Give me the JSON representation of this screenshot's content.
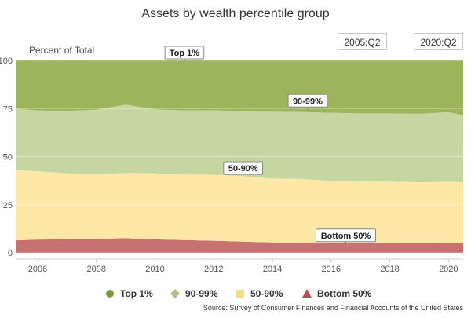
{
  "chart_data": {
    "type": "area",
    "stacked": true,
    "title": "Assets by wealth percentile group",
    "ylabel": "Percent of Total",
    "ylim": [
      0,
      100
    ],
    "yticks": [
      0,
      25,
      50,
      75,
      100
    ],
    "xlim": [
      2005.25,
      2020.5
    ],
    "xticks": [
      2006,
      2008,
      2010,
      2012,
      2014,
      2016,
      2018,
      2020
    ],
    "x": [
      2005.25,
      2006,
      2007,
      2008,
      2009,
      2010,
      2011,
      2012,
      2013,
      2014,
      2015,
      2016,
      2017,
      2018,
      2019,
      2020,
      2020.5
    ],
    "series": [
      {
        "name": "Bottom 50%",
        "color": "#c97070",
        "marker": "triangle",
        "values": [
          6.5,
          6.9,
          7.0,
          7.3,
          7.6,
          7.0,
          6.6,
          6.3,
          5.8,
          5.4,
          5.2,
          5.0,
          5.0,
          5.0,
          4.9,
          5.0,
          5.1
        ]
      },
      {
        "name": "50-90%",
        "color": "#fde7a6",
        "marker": "square",
        "values": [
          36.5,
          35.5,
          34.4,
          33.4,
          34.0,
          34.3,
          34.2,
          34.3,
          34.1,
          33.3,
          33.2,
          32.5,
          32.2,
          32.0,
          31.8,
          31.9,
          31.5
        ]
      },
      {
        "name": "90-99%",
        "color": "#c6d6a0",
        "marker": "diamond",
        "values": [
          32.0,
          31.6,
          32.4,
          33.7,
          35.4,
          33.3,
          33.2,
          33.5,
          33.7,
          34.6,
          34.8,
          35.3,
          35.3,
          35.5,
          35.6,
          36.2,
          35.0
        ]
      },
      {
        "name": "Top 1%",
        "color": "#9db55a",
        "marker": "circle",
        "values": [
          25.0,
          26.0,
          26.2,
          25.6,
          23.0,
          25.4,
          26.0,
          25.9,
          26.4,
          26.7,
          26.8,
          27.2,
          27.5,
          27.5,
          27.7,
          26.9,
          28.4
        ]
      }
    ],
    "annotations": [
      {
        "label": "Top 1%",
        "x": 2011.0,
        "y": 100
      },
      {
        "label": "90-99%",
        "x": 2015.2,
        "y": 75
      },
      {
        "label": "50-90%",
        "x": 2013.0,
        "y": 40
      },
      {
        "label": "Bottom 50%",
        "x": 2016.5,
        "y": 5
      }
    ],
    "range_buttons": [
      "2005:Q2",
      "2020:Q2"
    ],
    "source": "Source: Survey of Consumer Finances and Financial Accounts of the United States"
  }
}
